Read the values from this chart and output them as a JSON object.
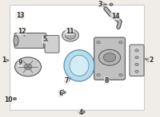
{
  "bg_color": "#f0ede8",
  "border_color": "#cccccc",
  "highlight_color": "#a8d8e8",
  "part_color": "#d0d0d0",
  "dark_part": "#888888",
  "line_color": "#555555",
  "label_color": "#333333",
  "font_size": 5.5,
  "figsize": [
    2.0,
    1.47
  ],
  "dpi": 100
}
